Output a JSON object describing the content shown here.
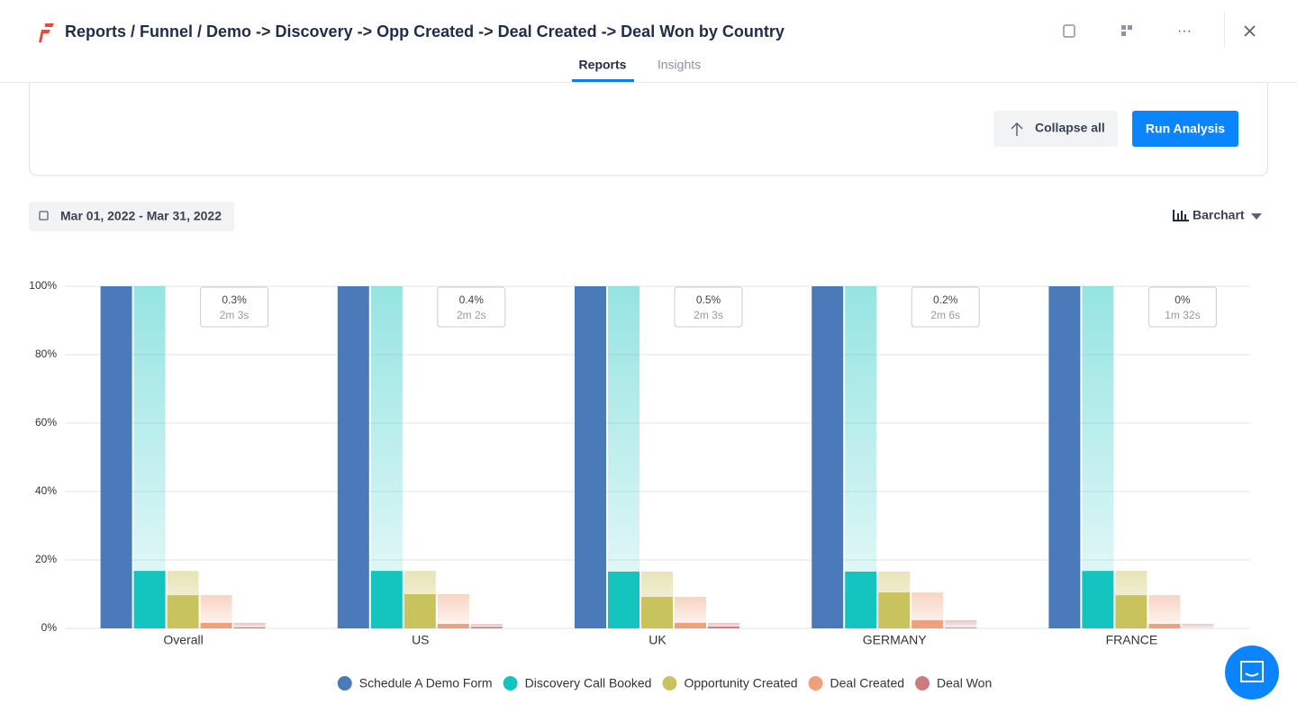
{
  "header": {
    "title": "Reports / Funnel / Demo -> Discovery -> Opp Created -> Deal Created -> Deal Won by Country",
    "tabs": [
      "Reports",
      "Insights"
    ]
  },
  "toolbar": {
    "collapse_button": "Collapse all",
    "run_button": "Run Analysis",
    "date_range": "Mar 01, 2022 - Mar 31, 2022",
    "chart_selector": "Barchart"
  },
  "chart_data": {
    "type": "bar",
    "categories": [
      "Overall",
      "US",
      "UK",
      "GERMANY",
      "FRANCE"
    ],
    "series": [
      {
        "name": "Schedule A Demo Form",
        "color": "#4a7aba",
        "values": [
          100,
          100,
          100,
          100,
          100
        ]
      },
      {
        "name": "Discovery Call Booked",
        "color": "#14c4bf",
        "values": [
          16.8,
          16.8,
          16.6,
          16.6,
          16.8
        ]
      },
      {
        "name": "Opportunity Created",
        "color": "#c9c35e",
        "values": [
          9.7,
          10.0,
          9.2,
          10.5,
          9.7
        ]
      },
      {
        "name": "Deal Created",
        "color": "#f0a07a",
        "values": [
          1.6,
          1.3,
          1.6,
          2.4,
          1.3
        ]
      },
      {
        "name": "Deal Won",
        "color": "#cf7a7c",
        "values": [
          0.3,
          0.4,
          0.5,
          0.2,
          0
        ]
      }
    ],
    "annotations": [
      {
        "conversion": "0.3%",
        "time": "2m 3s"
      },
      {
        "conversion": "0.4%",
        "time": "2m 2s"
      },
      {
        "conversion": "0.5%",
        "time": "2m 3s"
      },
      {
        "conversion": "0.2%",
        "time": "2m 6s"
      },
      {
        "conversion": "0%",
        "time": "1m 32s"
      }
    ],
    "ylim": [
      0,
      100
    ],
    "yticks": [
      {
        "value": 0,
        "label": "0%"
      },
      {
        "value": 20,
        "label": "20%"
      },
      {
        "value": 40,
        "label": "40%"
      },
      {
        "value": 60,
        "label": "60%"
      },
      {
        "value": 80,
        "label": "80%"
      },
      {
        "value": 100,
        "label": "100%"
      }
    ],
    "grid": true,
    "legend": "bottom"
  }
}
